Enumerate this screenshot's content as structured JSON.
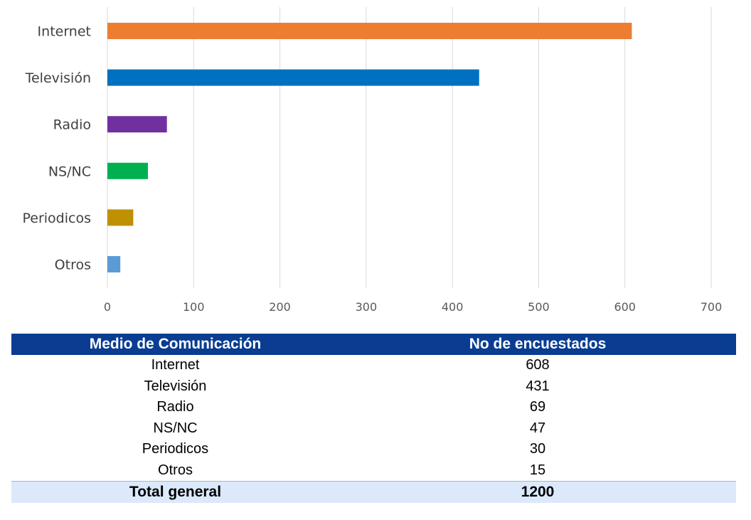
{
  "chart_data": {
    "type": "bar",
    "orientation": "horizontal",
    "categories": [
      "Internet",
      "Televisión",
      "Radio",
      "NS/NC",
      "Periodicos",
      "Otros"
    ],
    "values": [
      608,
      431,
      69,
      47,
      30,
      15
    ],
    "colors": [
      "#ed7d31",
      "#0070c0",
      "#7030a0",
      "#00b050",
      "#bf9000",
      "#5b9bd5"
    ],
    "xlim": [
      0,
      700
    ],
    "xticks": [
      "0",
      "100",
      "200",
      "300",
      "400",
      "500",
      "600",
      "700"
    ],
    "grid": "vertical",
    "title": "",
    "xlabel": "",
    "ylabel": ""
  },
  "table": {
    "headers": [
      "Medio de Comunicación",
      "No de encuestados"
    ],
    "rows": [
      [
        "Internet",
        "608"
      ],
      [
        "Televisión",
        "431"
      ],
      [
        "Radio",
        "69"
      ],
      [
        "NS/NC",
        "47"
      ],
      [
        "Periodicos",
        "30"
      ],
      [
        "Otros",
        "15"
      ]
    ],
    "total": [
      "Total general",
      "1200"
    ],
    "header_color": "#0a3d91",
    "total_color": "#dce9fa"
  }
}
